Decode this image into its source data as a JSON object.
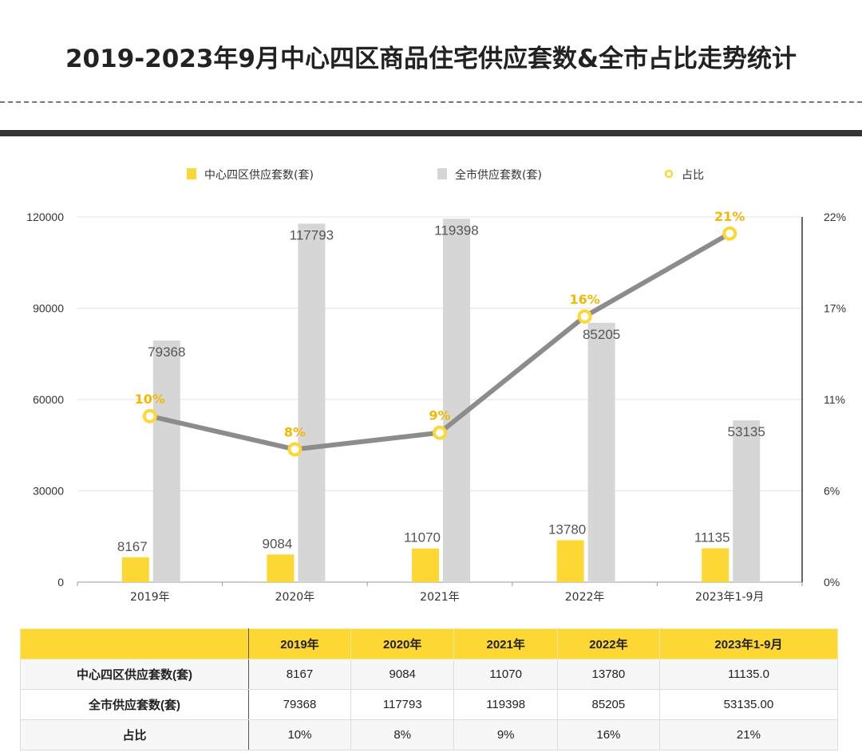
{
  "title": "2019-2023年9月中心四区商品住宅供应套数&全市占比走势统计",
  "colors": {
    "central": "#fdd835",
    "city": "#d6d6d6",
    "ratio_line": "#8c8c8c",
    "ratio_label": "#f5b800"
  },
  "chart_data": {
    "type": "bar+line",
    "categories": [
      "2019年",
      "2020年",
      "2021年",
      "2022年",
      "2023年1-9月"
    ],
    "series": [
      {
        "name": "中心四区供应套数(套)",
        "type": "bar",
        "axis": "left",
        "values": [
          8167,
          9084,
          11070,
          13780,
          11135
        ],
        "labels": [
          "8167",
          "9084",
          "11070",
          "13780",
          "11135"
        ]
      },
      {
        "name": "全市供应套数(套)",
        "type": "bar",
        "axis": "left",
        "values": [
          79368,
          117793,
          119398,
          85205,
          53135
        ],
        "labels": [
          "79368",
          "117793",
          "119398",
          "85205",
          "53135"
        ]
      },
      {
        "name": "占比",
        "type": "line",
        "axis": "right",
        "values": [
          10,
          8,
          9,
          16,
          21
        ],
        "labels": [
          "10%",
          "8%",
          "9%",
          "16%",
          "21%"
        ]
      }
    ],
    "left_axis": {
      "range": [
        0,
        120000
      ],
      "ticks": [
        "0",
        "30000",
        "60000",
        "90000",
        "120000"
      ]
    },
    "right_axis": {
      "range": [
        0,
        22
      ],
      "ticks": [
        "0%",
        "6%",
        "11%",
        "17%",
        "22%"
      ]
    },
    "grid": true,
    "legend": "top"
  },
  "table": {
    "headers": [
      "",
      "2019年",
      "2020年",
      "2021年",
      "2022年",
      "2023年1-9月"
    ],
    "rows": [
      [
        "中心四区供应套数(套)",
        "8167",
        "9084",
        "11070",
        "13780",
        "11135.0"
      ],
      [
        "全市供应套数(套)",
        "79368",
        "117793",
        "119398",
        "85205",
        "53135.00"
      ],
      [
        "占比",
        "10%",
        "8%",
        "9%",
        "16%",
        "21%"
      ]
    ]
  }
}
